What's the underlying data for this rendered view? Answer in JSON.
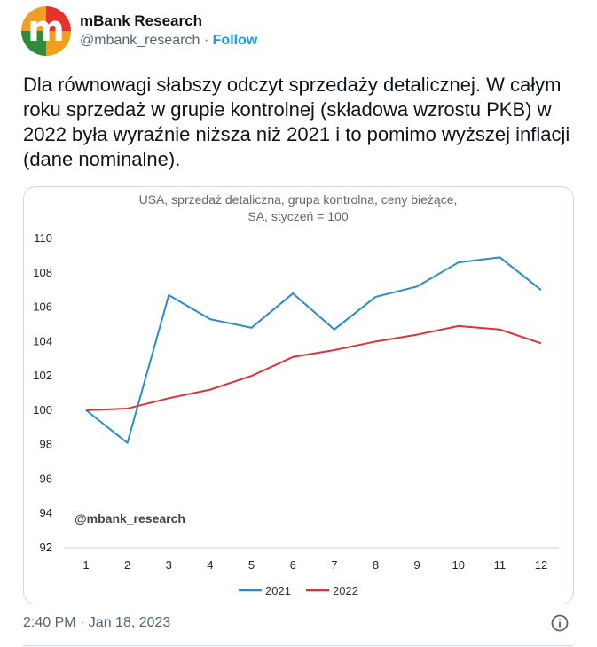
{
  "tweet": {
    "display_name": "mBank Research",
    "handle": "@mbank_research",
    "separator": "·",
    "follow_label": "Follow",
    "avatar_letter": "m",
    "text": "Dla równowagi słabszy odczyt sprzedaży detalicznej. W całym roku sprzedaż w grupie kontrolnej (składowa wzrostu PKB) w 2022 była wyraźnie niższa niż 2021 i to pomimo wyższej inflacji (dane nominalne).",
    "timestamp": "2:40 PM · Jan 18, 2023",
    "icons": {
      "info": "info-icon"
    }
  },
  "chart_data": {
    "type": "line",
    "title_line1": "USA, sprzedaż detaliczna, grupa kontrolna, ceny bieżące,",
    "title_line2": "SA, styczeń = 100",
    "watermark": "@mbank_research",
    "x": [
      1,
      2,
      3,
      4,
      5,
      6,
      7,
      8,
      9,
      10,
      11,
      12
    ],
    "ylim": [
      92,
      110
    ],
    "yticks": [
      92,
      94,
      96,
      98,
      100,
      102,
      104,
      106,
      108,
      110
    ],
    "grid": false,
    "legend_position": "bottom",
    "series": [
      {
        "name": "2021",
        "color": "#2b8cc4",
        "values": [
          100.0,
          98.1,
          106.7,
          105.3,
          104.8,
          106.8,
          104.7,
          106.6,
          107.2,
          108.6,
          108.9,
          107.0
        ]
      },
      {
        "name": "2022",
        "color": "#d9343a",
        "values": [
          100.0,
          100.1,
          100.7,
          101.2,
          102.0,
          103.1,
          103.5,
          104.0,
          104.4,
          104.9,
          104.7,
          103.9
        ]
      }
    ]
  }
}
